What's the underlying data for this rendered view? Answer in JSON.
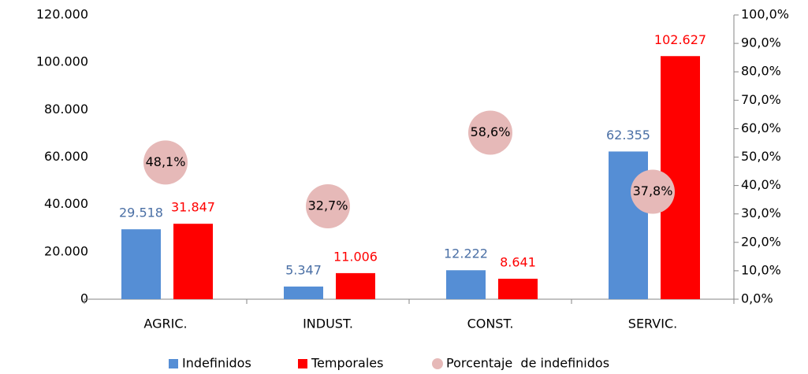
{
  "chart_data": {
    "type": "bar",
    "categories": [
      "AGRIC.",
      "INDUST.",
      "CONST.",
      "SERVIC."
    ],
    "series": [
      {
        "name": "Indefinidos",
        "color": "#558ed5",
        "label_color": "#4a6fa5",
        "values": [
          29518,
          5347,
          12222,
          62355
        ],
        "value_labels": [
          "29.518",
          "5.347",
          "12.222",
          "62.355"
        ]
      },
      {
        "name": "Temporales",
        "color": "#ff0000",
        "label_color": "#ff0000",
        "values": [
          31847,
          11006,
          8641,
          102627
        ],
        "value_labels": [
          "31.847",
          "11.006",
          "8.641",
          "102.627"
        ]
      },
      {
        "name": "Porcentaje  de indefinidos",
        "type": "scatter",
        "axis": "y2",
        "color": "#e6b9b8",
        "label_color": "#000000",
        "values": [
          48.1,
          32.7,
          58.6,
          37.8
        ],
        "value_labels": [
          "48,1%",
          "32,7%",
          "58,6%",
          "37,8%"
        ]
      }
    ],
    "ylim": [
      0,
      120000
    ],
    "yticks": [
      0,
      {
        "value": 20000,
        "label": "20.000"
      },
      {
        "value": 40000,
        "label": "40.000"
      },
      {
        "value": 60000,
        "label": "60.000"
      },
      {
        "value": 80000,
        "label": "80.000"
      },
      {
        "value": 100000,
        "label": "100.000"
      },
      {
        "value": 120000,
        "label": "120.000"
      }
    ],
    "y2lim": [
      0,
      100
    ],
    "y2ticks": [
      {
        "value": 0,
        "label": "0,0%"
      },
      {
        "value": 10,
        "label": "10,0%"
      },
      {
        "value": 20,
        "label": "20,0%"
      },
      {
        "value": 30,
        "label": "30,0%"
      },
      {
        "value": 40,
        "label": "40,0%"
      },
      {
        "value": 50,
        "label": "50,0%"
      },
      {
        "value": 60,
        "label": "60,0%"
      },
      {
        "value": 70,
        "label": "70,0%"
      },
      {
        "value": 80,
        "label": "80,0%"
      },
      {
        "value": 90,
        "label": "90,0%"
      },
      {
        "value": 100,
        "label": "100,0%"
      }
    ],
    "grid": false,
    "legend": "bottom"
  }
}
